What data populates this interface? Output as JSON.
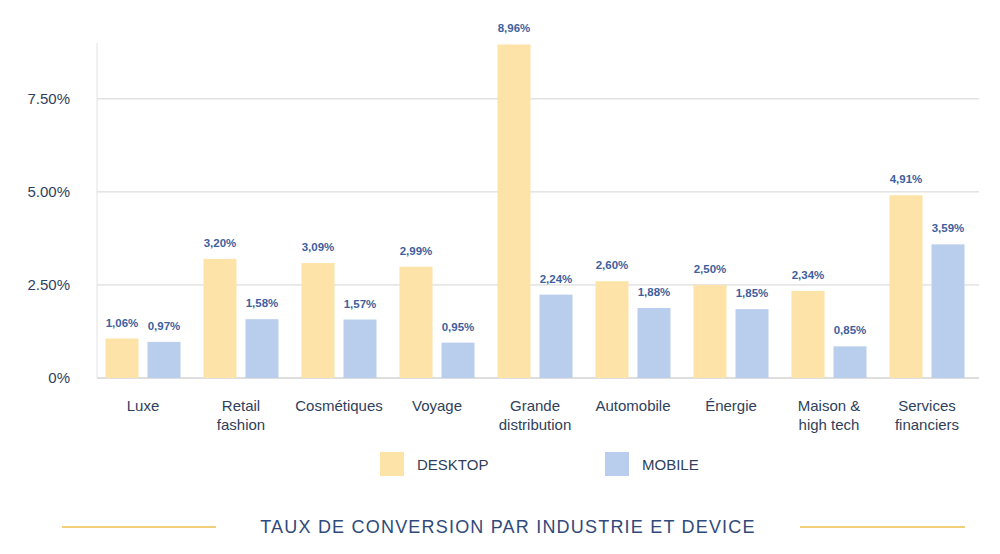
{
  "chart_data": {
    "type": "bar",
    "title": "TAUX DE CONVERSION PAR INDUSTRIE ET DEVICE",
    "categories": [
      "Luxe",
      "Retail fashion",
      "Cosmétiques",
      "Voyage",
      "Grande distribution",
      "Automobile",
      "Énergie",
      "Maison & high tech",
      "Services financiers"
    ],
    "series": [
      {
        "name": "DESKTOP",
        "color": "#fde3a7",
        "values": [
          1.06,
          3.2,
          3.09,
          2.99,
          8.96,
          2.6,
          2.5,
          2.34,
          4.91
        ],
        "value_labels": [
          "1,06%",
          "3,20%",
          "3,09%",
          "2,99%",
          "8,96%",
          "2,60%",
          "2,50%",
          "2,34%",
          "4,91%"
        ]
      },
      {
        "name": "MOBILE",
        "color": "#b9cdec",
        "values": [
          0.97,
          1.58,
          1.57,
          0.95,
          2.24,
          1.88,
          1.85,
          0.85,
          3.59
        ],
        "value_labels": [
          "0,97%",
          "1,58%",
          "1,57%",
          "0,95%",
          "2,24%",
          "1,88%",
          "1,85%",
          "0,85%",
          "3,59%"
        ]
      }
    ],
    "ylim": [
      0,
      9
    ],
    "yticks": [
      {
        "value": 0,
        "label": "0%"
      },
      {
        "value": 2.5,
        "label": "2.50%"
      },
      {
        "value": 5,
        "label": "5.00%"
      },
      {
        "value": 7.5,
        "label": "7.50%"
      }
    ],
    "grid": true,
    "legend": "bottom",
    "data_labels": true
  }
}
